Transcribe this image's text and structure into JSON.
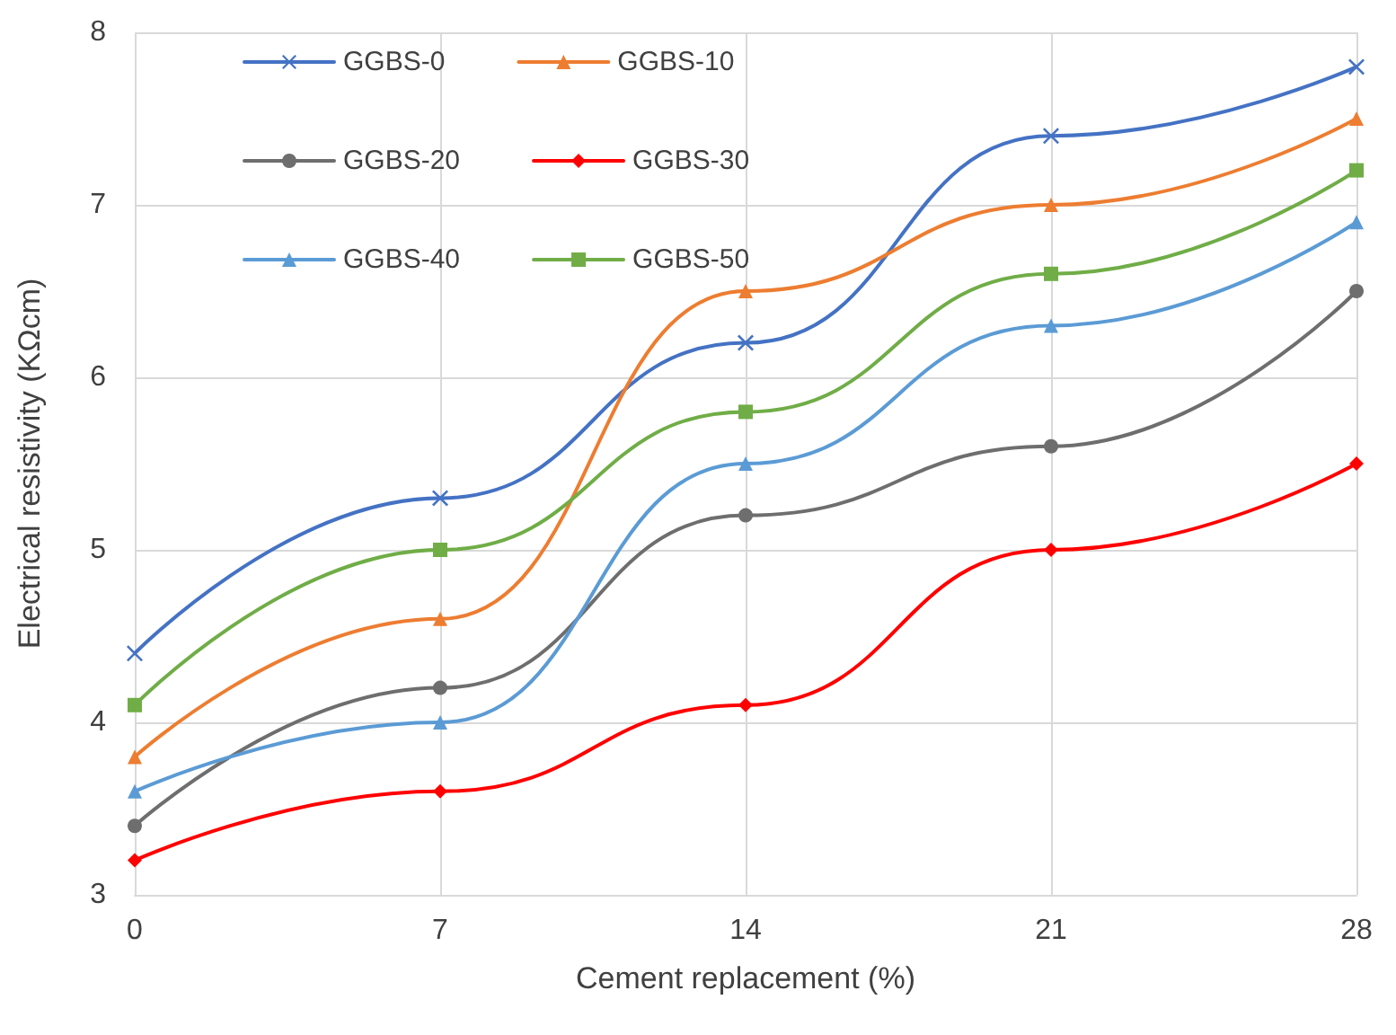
{
  "chart_data": {
    "type": "line",
    "xlabel": "Cement replacement (%)",
    "ylabel": "Electrical resistivity (KΩcm)",
    "x": [
      0,
      7,
      14,
      21,
      28
    ],
    "xlim": [
      0,
      28
    ],
    "xticks": [
      0,
      7,
      14,
      21,
      28
    ],
    "ylim": [
      3,
      8
    ],
    "yticks": [
      3,
      4,
      5,
      6,
      7,
      8
    ],
    "grid": true,
    "legend": "top left",
    "line_style": "solid",
    "series": [
      {
        "name": "GGBS-0",
        "color": "#4472c4",
        "marker": "cross",
        "values": [
          4.4,
          5.3,
          6.2,
          7.4,
          7.8
        ]
      },
      {
        "name": "GGBS-10",
        "color": "#ed7d31",
        "marker": "triangle",
        "values": [
          3.8,
          4.6,
          6.5,
          7.0,
          7.5
        ]
      },
      {
        "name": "GGBS-20",
        "color": "#6e6e6e",
        "marker": "circle",
        "values": [
          3.4,
          4.2,
          5.2,
          5.6,
          6.5
        ]
      },
      {
        "name": "GGBS-30",
        "color": "#ff0000",
        "marker": "diamond",
        "values": [
          3.2,
          3.6,
          4.1,
          5.0,
          5.5
        ]
      },
      {
        "name": "GGBS-40",
        "color": "#5b9bd5",
        "marker": "triangle",
        "values": [
          3.6,
          4.0,
          5.5,
          6.3,
          6.9
        ]
      },
      {
        "name": "GGBS-50",
        "color": "#70ad47",
        "marker": "square",
        "values": [
          4.1,
          5.0,
          5.8,
          6.6,
          7.2
        ]
      }
    ]
  }
}
